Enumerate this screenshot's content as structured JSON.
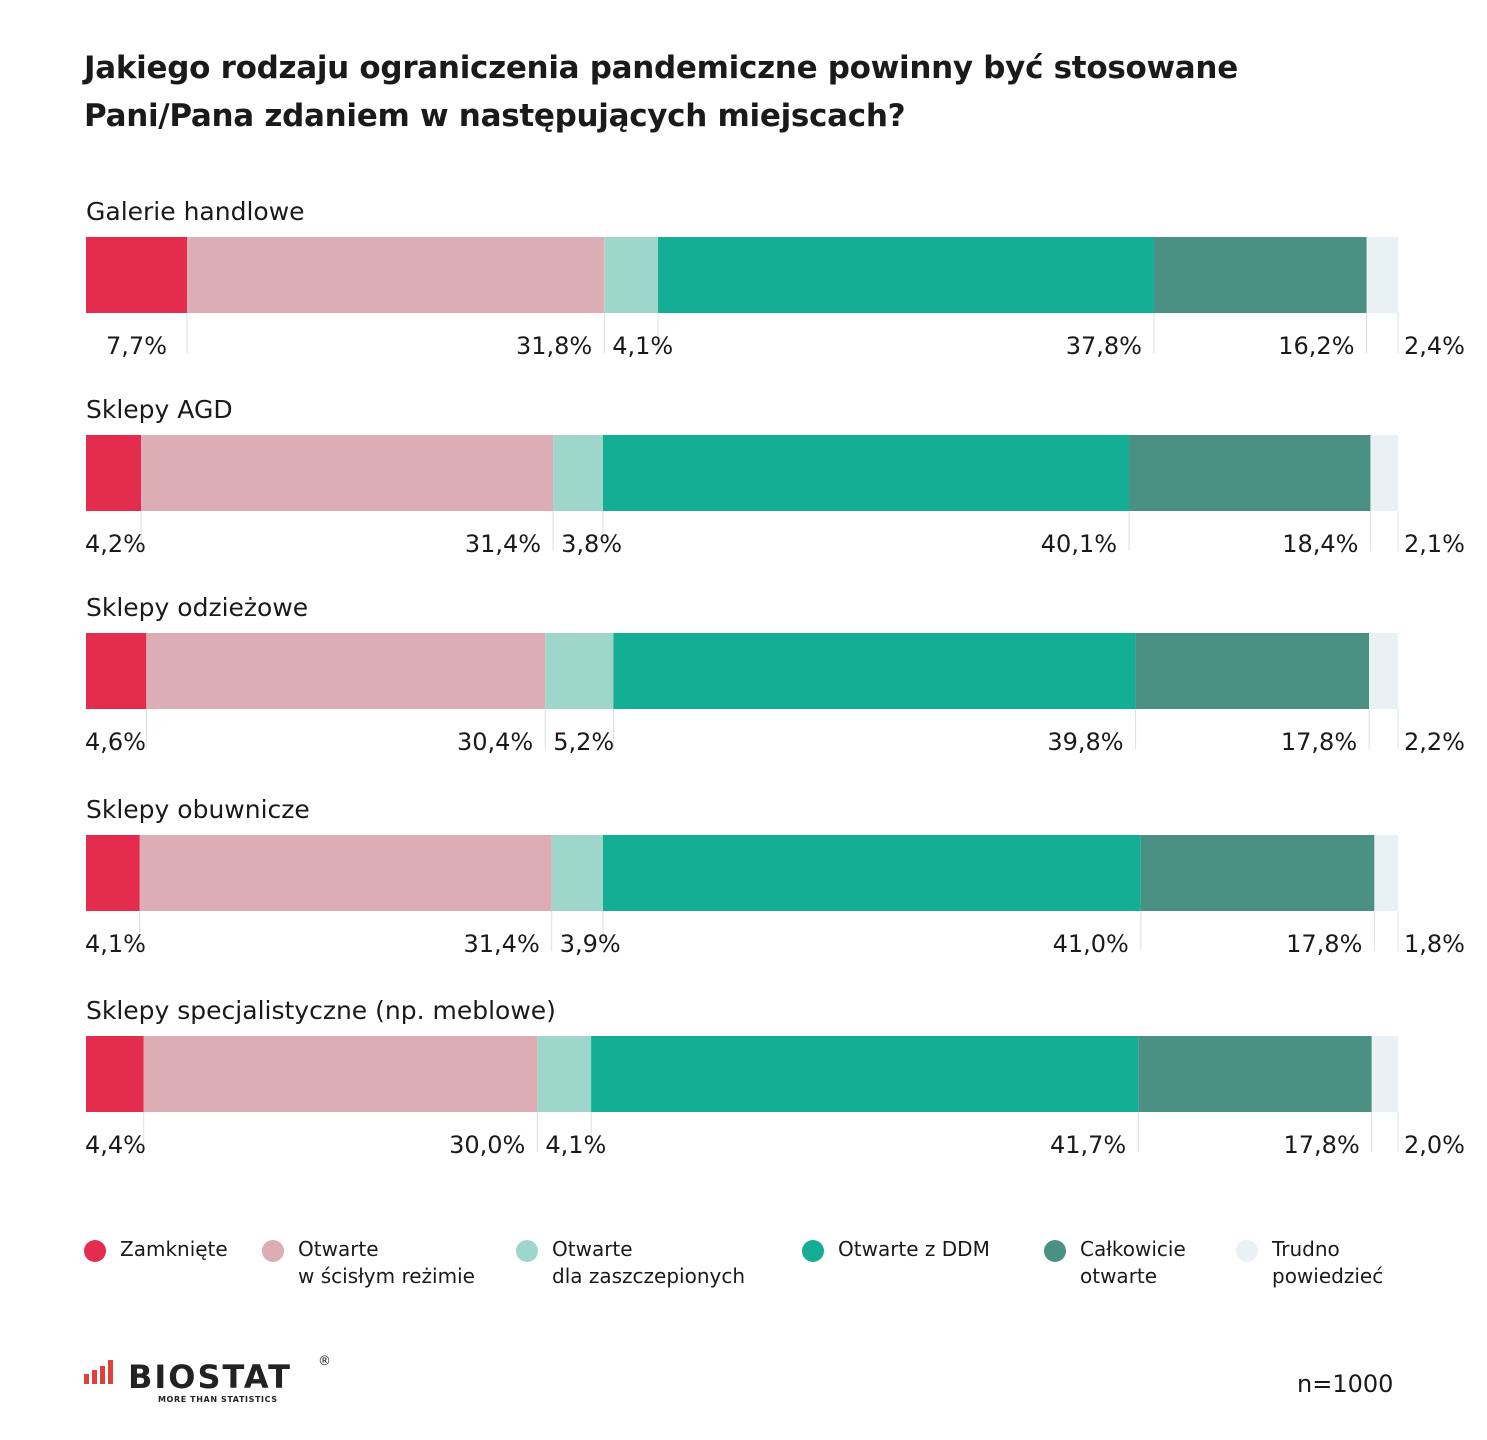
{
  "title": {
    "line1": "Jakiego rodzaju ograniczenia pandemiczne powinny być stosowane",
    "line2": "Pani/Pana zdaniem w następujących miejscach?"
  },
  "chart_data": {
    "type": "bar",
    "orientation": "horizontal",
    "stacked": true,
    "normalized_to": 100,
    "categories": [
      "Galerie handlowe",
      "Sklepy AGD",
      "Sklepy odzieżowe",
      "Sklepy obuwnicze",
      "Sklepy specjalistyczne (np. meblowe)"
    ],
    "series": [
      {
        "name": "Zamknięte",
        "color": "#e42c4e",
        "values": [
          7.7,
          4.2,
          4.6,
          4.1,
          4.4
        ],
        "labels": [
          "7,7%",
          "4,2%",
          "4,6%",
          "4,1%",
          "4,4%"
        ]
      },
      {
        "name": "Otwarte w ścisłym reżimie",
        "color": "#dcadb4",
        "values": [
          31.8,
          31.4,
          30.4,
          31.4,
          30.0
        ],
        "labels": [
          "31,8%",
          "31,4%",
          "30,4%",
          "31,4%",
          "30,0%"
        ]
      },
      {
        "name": "Otwarte dla zaszczepionych",
        "color": "#9fd6cc",
        "values": [
          4.1,
          3.8,
          5.2,
          3.9,
          4.1
        ],
        "labels": [
          "4,1%",
          "3,8%",
          "5,2%",
          "3,9%",
          "4,1%"
        ]
      },
      {
        "name": "Otwarte z DDM",
        "color": "#14ae94",
        "values": [
          37.8,
          40.1,
          39.8,
          41.0,
          41.7
        ],
        "labels": [
          "37,8%",
          "40,1%",
          "39,8%",
          "41,0%",
          "41,7%"
        ]
      },
      {
        "name": "Całkowicie otwarte",
        "color": "#4a9083",
        "values": [
          16.2,
          18.4,
          17.8,
          17.8,
          17.8
        ],
        "labels": [
          "16,2%",
          "18,4%",
          "17,8%",
          "17,8%",
          "17,8%"
        ]
      },
      {
        "name": "Trudno powiedzieć",
        "color": "#eaf1f5",
        "values": [
          2.4,
          2.1,
          2.2,
          1.8,
          2.0
        ],
        "labels": [
          "2,4%",
          "2,1%",
          "2,2%",
          "1,8%",
          "2,0%"
        ]
      }
    ]
  },
  "legend": [
    {
      "lines": [
        "Zamknięte"
      ],
      "color": "#e42c4e"
    },
    {
      "lines": [
        "Otwarte",
        "w ścisłym reżimie"
      ],
      "color": "#dcadb4"
    },
    {
      "lines": [
        "Otwarte",
        "dla zaszczepionych"
      ],
      "color": "#9fd6cc"
    },
    {
      "lines": [
        "Otwarte z DDM"
      ],
      "color": "#14ae94"
    },
    {
      "lines": [
        "Całkowicie",
        "otwarte"
      ],
      "color": "#4a9083"
    },
    {
      "lines": [
        "Trudno",
        "powiedzieć"
      ],
      "color": "#eaf1f5"
    }
  ],
  "logo": {
    "brand": "BIOSTAT",
    "tagline": "MORE THAN STATISTICS",
    "reg": "®"
  },
  "sample": "n=1000"
}
